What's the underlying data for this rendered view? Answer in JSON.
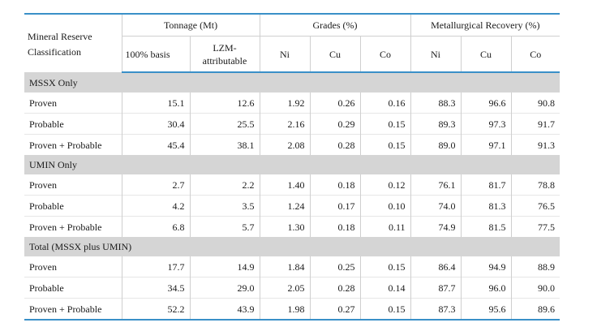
{
  "header": {
    "classification": "Mineral Reserve Classification",
    "groups": [
      "Tonnage (Mt)",
      "Grades (%)",
      "Metallurgical Recovery (%)"
    ],
    "columns": [
      "100% basis",
      "LZM-attributable",
      "Ni",
      "Cu",
      "Co",
      "Ni",
      "Cu",
      "Co"
    ]
  },
  "sections": [
    {
      "title": "MSSX Only",
      "rows": [
        {
          "label": "Proven",
          "values": [
            "15.1",
            "12.6",
            "1.92",
            "0.26",
            "0.16",
            "88.3",
            "96.6",
            "90.8"
          ]
        },
        {
          "label": "Probable",
          "values": [
            "30.4",
            "25.5",
            "2.16",
            "0.29",
            "0.15",
            "89.3",
            "97.3",
            "91.7"
          ]
        },
        {
          "label": "Proven + Probable",
          "values": [
            "45.4",
            "38.1",
            "2.08",
            "0.28",
            "0.15",
            "89.0",
            "97.1",
            "91.3"
          ]
        }
      ]
    },
    {
      "title": "UMIN Only",
      "rows": [
        {
          "label": "Proven",
          "values": [
            "2.7",
            "2.2",
            "1.40",
            "0.18",
            "0.12",
            "76.1",
            "81.7",
            "78.8"
          ]
        },
        {
          "label": "Probable",
          "values": [
            "4.2",
            "3.5",
            "1.24",
            "0.17",
            "0.10",
            "74.0",
            "81.3",
            "76.5"
          ]
        },
        {
          "label": "Proven + Probable",
          "values": [
            "6.8",
            "5.7",
            "1.30",
            "0.18",
            "0.11",
            "74.9",
            "81.5",
            "77.5"
          ]
        }
      ]
    },
    {
      "title": "Total (MSSX plus UMIN)",
      "rows": [
        {
          "label": "Proven",
          "values": [
            "17.7",
            "14.9",
            "1.84",
            "0.25",
            "0.15",
            "86.4",
            "94.9",
            "88.9"
          ]
        },
        {
          "label": "Probable",
          "values": [
            "34.5",
            "29.0",
            "2.05",
            "0.28",
            "0.14",
            "87.7",
            "96.0",
            "90.0"
          ]
        },
        {
          "label": "Proven + Probable",
          "values": [
            "52.2",
            "43.9",
            "1.98",
            "0.27",
            "0.15",
            "87.3",
            "95.6",
            "89.6"
          ]
        }
      ]
    }
  ]
}
